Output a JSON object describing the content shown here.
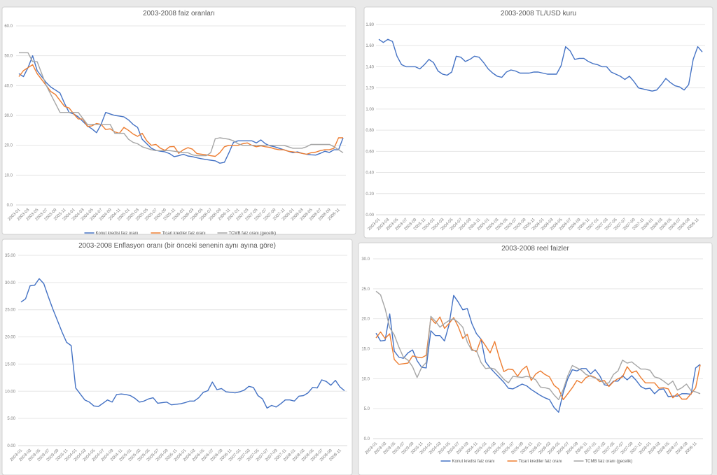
{
  "colors": {
    "konut": "#4472c4",
    "ticari": "#ed7d31",
    "tcmb": "#a5a5a5",
    "grid": "#e6e6e6"
  },
  "x_tick_labels": [
    "2003-01",
    "2003-03",
    "2003-05",
    "2003-07",
    "2003-09",
    "2003-11",
    "2004-01",
    "2004-03",
    "2004-05",
    "2004-07",
    "2004-09",
    "2004-11",
    "2005-01",
    "2005-03",
    "2005-05",
    "2005-07",
    "2005-09",
    "2005-11",
    "2006-01",
    "2006-03",
    "2006-05",
    "2006-07",
    "2006-09",
    "2006-11",
    "2007-01",
    "2007-03",
    "2007-05",
    "2007-07",
    "2007-09",
    "2007-11",
    "2008-01",
    "2008-03",
    "2008-05",
    "2008-07",
    "2008-09",
    "2008-11"
  ],
  "chart_data": [
    {
      "type": "line",
      "title": "2003-2008 faiz oranları",
      "x": "monthly 2003-01 .. 2008-12",
      "ylim": [
        0,
        60
      ],
      "y_ticks": [
        "0.0",
        "10.0",
        "20.0",
        "30.0",
        "40.0",
        "50.0",
        "60.0"
      ],
      "grid": true,
      "legend": "bottom",
      "series": [
        {
          "name": "Konut kredisi faiz oranı",
          "color_key": "konut",
          "values": [
            44,
            43,
            46,
            50,
            45,
            43,
            41,
            39.5,
            38.5,
            37.5,
            34,
            31,
            30.5,
            29.5,
            28,
            26.5,
            25.5,
            24.2,
            27,
            31,
            30.5,
            30,
            29.8,
            29.5,
            28.5,
            27,
            26,
            22,
            20.5,
            19,
            18.3,
            18,
            17.8,
            17.2,
            16.2,
            16.5,
            17,
            16.4,
            16.2,
            15.8,
            15.5,
            15.2,
            15,
            14.8,
            14,
            14.3,
            17.5,
            21,
            21.5,
            21.5,
            21.5,
            21.5,
            20.8,
            21.8,
            20.5,
            19.8,
            19.5,
            19,
            18.5,
            18,
            17.5,
            17.8,
            17.3,
            17,
            16.8,
            16.7,
            17.3,
            18,
            17.6,
            18.5,
            18.5,
            22.5
          ]
        },
        {
          "name": "Ticari krediler faiz oranı",
          "color_key": "ticari",
          "values": [
            43,
            45,
            46,
            47,
            44,
            42,
            40,
            38,
            37,
            35,
            33,
            32.5,
            30.5,
            28.8,
            28.8,
            26.3,
            26.5,
            27.3,
            27,
            25.3,
            25.5,
            24.5,
            24,
            26,
            25,
            23.8,
            23,
            24,
            21.5,
            20,
            20.3,
            19,
            18.3,
            19.5,
            19.6,
            17.3,
            18.5,
            19.2,
            18.7,
            17.2,
            17,
            16.8,
            16.5,
            16.3,
            17.5,
            19.5,
            20,
            20,
            20,
            20.5,
            20.8,
            20,
            19.5,
            19.8,
            19.5,
            19.3,
            18.8,
            18.5,
            18.5,
            18,
            17.8,
            17.6,
            17.3,
            17,
            17.5,
            17.7,
            18.2,
            18.5,
            18.5,
            19,
            22.5,
            22.5
          ]
        },
        {
          "name": "TCMB faiz oranı (gecelik)",
          "color_key": "tcmb",
          "values": [
            51,
            51,
            51,
            48,
            48,
            44,
            40,
            37,
            34,
            31,
            31,
            31,
            31,
            31,
            29,
            27,
            27,
            27,
            27,
            27,
            27,
            24,
            24,
            24,
            22,
            21,
            20.5,
            19.5,
            19,
            18.5,
            18.2,
            18.2,
            18.2,
            18.2,
            18,
            17.8,
            17.5,
            17.5,
            16.8,
            16.5,
            16.5,
            16.5,
            17.5,
            22.2,
            22.5,
            22.3,
            22,
            21.5,
            20.5,
            20,
            20,
            20,
            20,
            20,
            20,
            20,
            20,
            20,
            20,
            19.5,
            19,
            19,
            19,
            19.5,
            20.3,
            20.3,
            20.3,
            20.3,
            20.3,
            19.5,
            18.5,
            17.5
          ]
        }
      ]
    },
    {
      "type": "line",
      "title": "2003-2008 TL/USD kuru",
      "x": "monthly 2003-01 .. 2008-12",
      "ylim": [
        0,
        1.8
      ],
      "y_ticks": [
        "0.00",
        "0.20",
        "0.40",
        "0.60",
        "0.80",
        "1.00",
        "1.20",
        "1.40",
        "1.60",
        "1.80"
      ],
      "grid": true,
      "legend": "none",
      "series": [
        {
          "name": "TL/USD",
          "color_key": "konut",
          "values": [
            1.66,
            1.63,
            1.66,
            1.64,
            1.5,
            1.42,
            1.4,
            1.4,
            1.4,
            1.38,
            1.42,
            1.47,
            1.44,
            1.36,
            1.33,
            1.32,
            1.35,
            1.5,
            1.49,
            1.45,
            1.47,
            1.5,
            1.49,
            1.44,
            1.38,
            1.34,
            1.31,
            1.3,
            1.35,
            1.37,
            1.36,
            1.34,
            1.34,
            1.34,
            1.35,
            1.35,
            1.34,
            1.33,
            1.33,
            1.33,
            1.41,
            1.59,
            1.55,
            1.47,
            1.48,
            1.48,
            1.45,
            1.43,
            1.42,
            1.4,
            1.4,
            1.35,
            1.33,
            1.31,
            1.28,
            1.31,
            1.26,
            1.2,
            1.19,
            1.18,
            1.17,
            1.18,
            1.23,
            1.29,
            1.25,
            1.22,
            1.21,
            1.18,
            1.23,
            1.47,
            1.59,
            1.54
          ]
        }
      ]
    },
    {
      "type": "line",
      "title": "2003-2008 Enflasyon oranı (bir önceki senenin aynı ayına göre)",
      "x": "monthly 2003-01 .. 2008-12",
      "ylim": [
        0,
        35
      ],
      "y_ticks": [
        "0.00",
        "5.00",
        "10.00",
        "15.00",
        "20.00",
        "25.00",
        "30.00",
        "35.00"
      ],
      "grid": true,
      "legend": "none",
      "series": [
        {
          "name": "Enflasyon oranı",
          "color_key": "konut",
          "values": [
            26.4,
            27,
            29.4,
            29.5,
            30.7,
            29.8,
            27.4,
            25.1,
            23.0,
            20.9,
            19.0,
            18.4,
            10.6,
            9.5,
            8.4,
            8.0,
            7.3,
            7.2,
            7.8,
            8.4,
            8.0,
            9.4,
            9.5,
            9.4,
            9.2,
            8.7,
            8.0,
            8.2,
            8.6,
            8.8,
            7.8,
            7.9,
            8.0,
            7.5,
            7.6,
            7.7,
            7.9,
            8.2,
            8.2,
            8.8,
            9.8,
            10.1,
            11.7,
            10.3,
            10.5,
            9.9,
            9.8,
            9.7,
            9.9,
            10.2,
            10.9,
            10.7,
            9.2,
            8.6,
            6.9,
            7.4,
            7.1,
            7.7,
            8.4,
            8.4,
            8.2,
            9.1,
            9.2,
            9.7,
            10.7,
            10.6,
            12.1,
            11.8,
            11.1,
            12.0,
            10.8,
            10.1
          ]
        }
      ]
    },
    {
      "type": "line",
      "title": "2003-2008 reel faizler",
      "x": "monthly 2003-01 .. 2008-12",
      "ylim": [
        0,
        30
      ],
      "y_ticks": [
        "0.0",
        "5.0",
        "10.0",
        "15.0",
        "20.0",
        "25.0",
        "30.0"
      ],
      "grid": true,
      "legend": "bottom",
      "series": [
        {
          "name": "Konut kredisi faiz oranı",
          "color_key": "konut",
          "values": [
            17.6,
            16.3,
            16.4,
            20.8,
            14.6,
            13.6,
            13.4,
            14.3,
            14.8,
            13.0,
            11.9,
            11.8,
            18.0,
            17.2,
            17.2,
            16.3,
            19,
            23.9,
            22.8,
            21.5,
            21.7,
            19.2,
            17.5,
            16.6,
            12.8,
            11.8,
            11,
            10.2,
            9.4,
            8.4,
            8.3,
            8.7,
            9.1,
            8.8,
            8.2,
            7.7,
            7.2,
            6.8,
            6.5,
            5.2,
            4.4,
            7.7,
            10,
            11.5,
            11.3,
            11.7,
            11.7,
            10.8,
            11.5,
            10.5,
            9,
            8.8,
            9.6,
            9.6,
            10.5,
            9.8,
            10.5,
            9.7,
            8.7,
            8.3,
            8.4,
            7.5,
            8.2,
            8.3,
            7.0,
            7.1,
            7.1,
            7.5,
            7.5,
            7.4,
            11.8,
            12.4
          ]
        },
        {
          "name": "Ticari krediler faiz oranı",
          "color_key": "ticari",
          "values": [
            16.8,
            17.8,
            16.7,
            17.5,
            13.2,
            12.4,
            12.5,
            12.6,
            13.8,
            13.6,
            13.5,
            13.9,
            20.1,
            19.2,
            20.3,
            18.4,
            19.2,
            20.2,
            18.7,
            16.7,
            17.4,
            14.9,
            14.5,
            16.6,
            15.5,
            14.3,
            16.2,
            13.5,
            11.2,
            11.6,
            11.5,
            10.4,
            11.5,
            12.1,
            9.7,
            10.8,
            11.3,
            10.7,
            10.3,
            8.9,
            8.3,
            6.5,
            7.5,
            8.5,
            9.7,
            9.3,
            10.2,
            10.5,
            10.2,
            9.5,
            9.7,
            8.7,
            9.5,
            10.0,
            10.3,
            12.0,
            11.0,
            11.3,
            10.2,
            9.3,
            9.3,
            9.3,
            8.4,
            8.5,
            8.3,
            6.8,
            7.5,
            6.6,
            6.6,
            7.5,
            8.5,
            12.3
          ]
        },
        {
          "name": "TCMB faiz oranı (gecelik)",
          "color_key": "tcmb",
          "values": [
            24.6,
            24.0,
            21.7,
            18.5,
            17.3,
            15.3,
            13.6,
            13.1,
            12.0,
            10.2,
            11.9,
            12.7,
            20.4,
            19.6,
            18.6,
            19.2,
            19.7,
            20.0,
            19.4,
            18.6,
            16.1,
            14.7,
            14.7,
            12.7,
            11.7,
            11.8,
            11.6,
            10.8,
            9.9,
            9.3,
            10.4,
            10.3,
            10.2,
            10.4,
            10.2,
            9.8,
            8.6,
            8.5,
            8.3,
            7.3,
            6.5,
            8.2,
            10.5,
            12.2,
            11.8,
            11.4,
            10.7,
            10.4,
            10.1,
            9.8,
            9.2,
            9.3,
            10.7,
            11.3,
            13.1,
            12.6,
            12.8,
            12.2,
            11.6,
            11.6,
            11.4,
            10.3,
            10.1,
            9.6,
            9.0,
            9.6,
            8.1,
            8.5,
            9.1,
            8.0,
            7.8,
            7.5
          ]
        }
      ]
    }
  ]
}
